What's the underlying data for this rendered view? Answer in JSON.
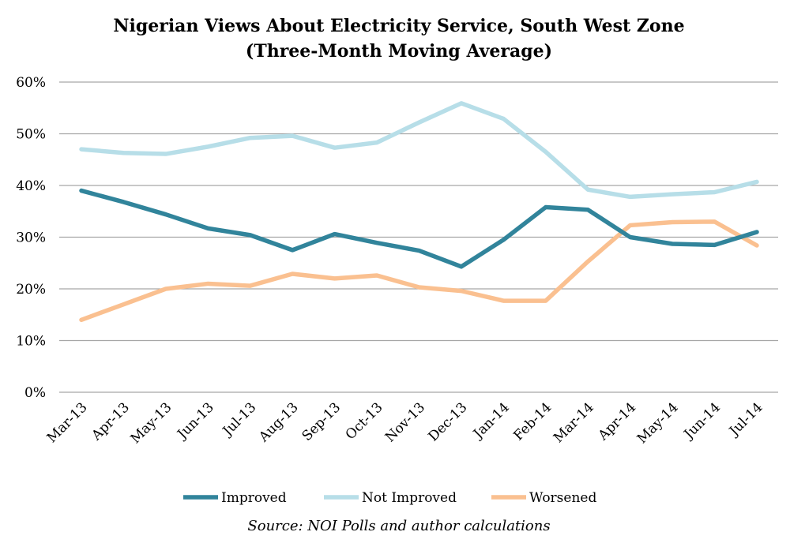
{
  "chart_data": {
    "type": "line",
    "title": "Nigerian Views About Electricity Service, South West Zone",
    "subtitle": "(Three-Month Moving Average)",
    "source": "Source: NOI Polls and author calculations",
    "xlabel": "",
    "ylabel": "",
    "ylim": [
      0,
      60
    ],
    "yticks": [
      "0%",
      "10%",
      "20%",
      "30%",
      "40%",
      "50%",
      "60%"
    ],
    "grid": true,
    "legend": "bottom",
    "categories": [
      "Mar-13",
      "Apr-13",
      "May-13",
      "Jun-13",
      "Jul-13",
      "Aug-13",
      "Sep-13",
      "Oct-13",
      "Nov-13",
      "Dec-13",
      "Jan-14",
      "Feb-14",
      "Mar-14",
      "Apr-14",
      "May-14",
      "Jun-14",
      "Jul-14"
    ],
    "series": [
      {
        "name": "Improved",
        "color": "#31849b",
        "values": [
          39.0,
          36.8,
          34.4,
          31.7,
          30.4,
          27.5,
          30.6,
          28.9,
          27.4,
          24.3,
          29.5,
          35.8,
          35.3,
          30.0,
          28.7,
          28.5,
          31.0
        ]
      },
      {
        "name": "Not Improved",
        "color": "#b7dee8",
        "values": [
          47.0,
          46.3,
          46.1,
          47.5,
          49.2,
          49.6,
          47.3,
          48.3,
          52.2,
          55.9,
          52.9,
          46.5,
          39.2,
          37.8,
          38.3,
          38.7,
          40.7
        ]
      },
      {
        "name": "Worsened",
        "color": "#fac090",
        "values": [
          14.0,
          17.0,
          20.0,
          21.0,
          20.6,
          22.9,
          22.0,
          22.6,
          20.3,
          19.6,
          17.7,
          17.7,
          25.3,
          32.3,
          32.9,
          33.0,
          28.4
        ]
      }
    ]
  }
}
